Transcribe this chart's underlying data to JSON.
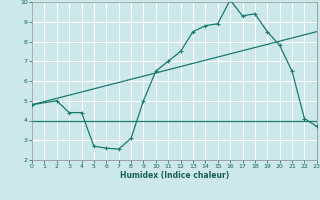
{
  "xlabel": "Humidex (Indice chaleur)",
  "bg_color": "#cce8ea",
  "grid_color": "#ffffff",
  "line_color": "#1a7a6e",
  "xlim": [
    0,
    23
  ],
  "ylim": [
    2,
    10
  ],
  "xticks": [
    0,
    1,
    2,
    3,
    4,
    5,
    6,
    7,
    8,
    9,
    10,
    11,
    12,
    13,
    14,
    15,
    16,
    17,
    18,
    19,
    20,
    21,
    22,
    23
  ],
  "yticks": [
    2,
    3,
    4,
    5,
    6,
    7,
    8,
    9,
    10
  ],
  "line1_x": [
    0,
    2,
    3,
    4,
    5,
    6,
    7,
    8,
    9,
    10,
    11,
    12,
    13,
    14,
    15,
    16,
    17,
    18,
    19,
    20,
    21,
    22,
    23
  ],
  "line1_y": [
    4.8,
    5.0,
    4.4,
    4.4,
    2.7,
    2.6,
    2.55,
    3.1,
    5.0,
    6.5,
    7.0,
    7.5,
    8.5,
    8.8,
    8.9,
    10.1,
    9.3,
    9.4,
    8.5,
    7.8,
    6.5,
    4.1,
    3.7
  ],
  "line2_x": [
    0,
    23
  ],
  "line2_y": [
    4.8,
    8.5
  ],
  "line3_x": [
    0,
    23
  ],
  "line3_y": [
    4.0,
    4.0
  ]
}
